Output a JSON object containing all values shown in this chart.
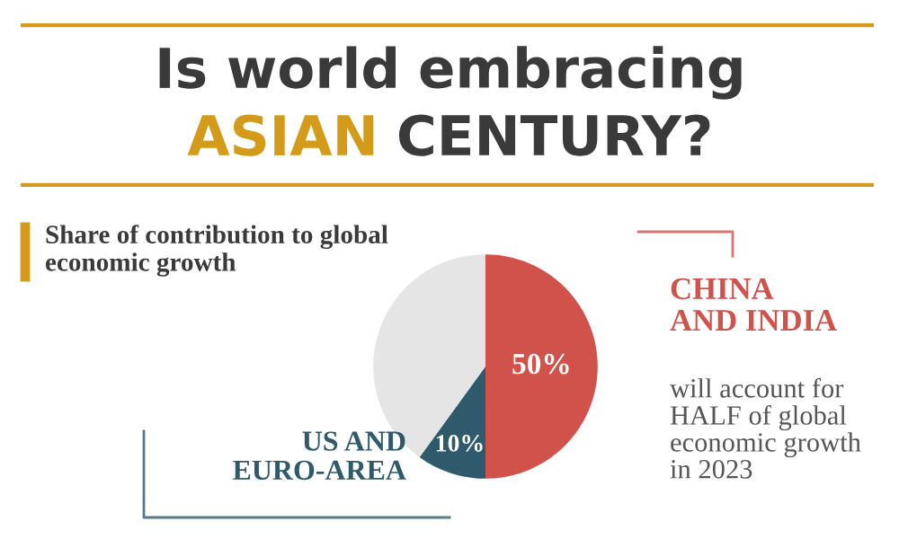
{
  "chart_data": {
    "type": "pie",
    "title": "Is world embracing ASIAN CENTURY?",
    "subtitle": "Share of contribution to global economic growth",
    "categories": [
      "CHINA AND INDIA",
      "US AND EURO-AREA",
      null
    ],
    "values": [
      50,
      10,
      40
    ],
    "colors": [
      "#d0524b",
      "#2f5a6b",
      "#e6e5e6"
    ],
    "value_labels": [
      "50%",
      "10%",
      null
    ],
    "annotations": [
      "will account for HALF of global economic growth in 2023"
    ]
  }
}
